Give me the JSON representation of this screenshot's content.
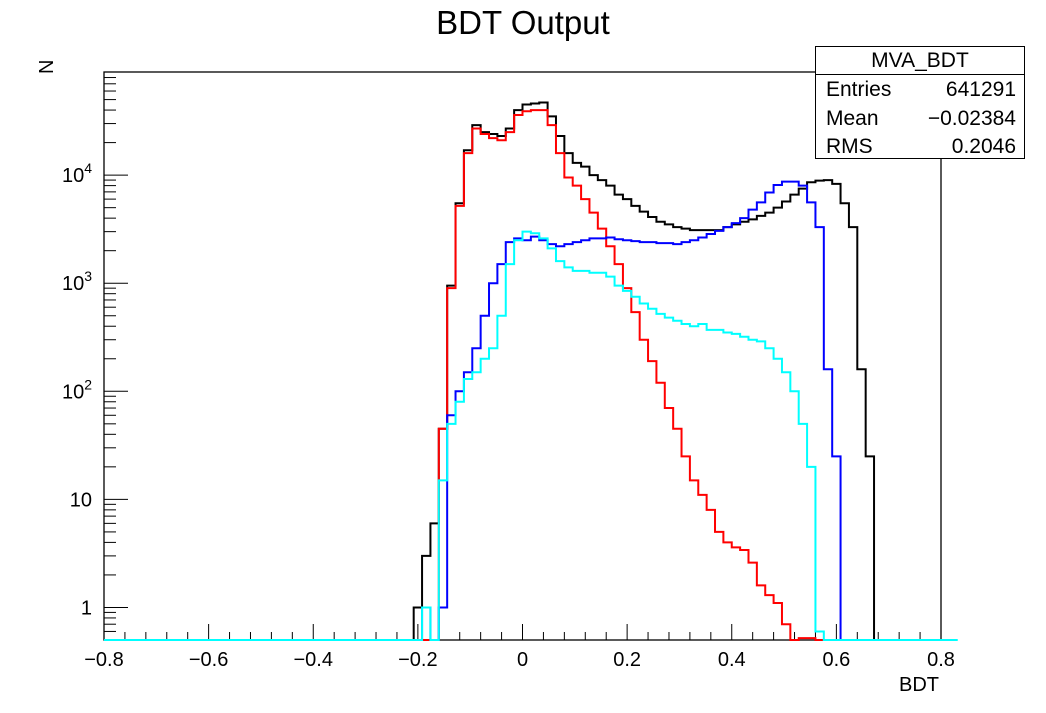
{
  "chart_data": {
    "type": "histogram",
    "title": "BDT Output",
    "xlabel": "BDT",
    "ylabel": "N",
    "xlim": [
      -0.8,
      0.8
    ],
    "ylim": [
      0.5,
      90000
    ],
    "yscale": "log",
    "bins": 100,
    "bin_width": 0.016,
    "x_ticks": [
      "−0.8",
      "−0.6",
      "−0.4",
      "−0.2",
      "0",
      "0.2",
      "0.4",
      "0.6",
      "0.8"
    ],
    "y_ticks": [
      "1",
      "10",
      "10^2",
      "10^3",
      "10^4"
    ],
    "stats": {
      "name": "MVA_BDT",
      "entries_label": "Entries",
      "entries": "641291",
      "mean_label": "Mean",
      "mean": "−0.02384",
      "rms_label": "RMS",
      "rms": "0.2046"
    },
    "series": [
      {
        "color": "#000000",
        "values": [
          0,
          0,
          0,
          0,
          0,
          0,
          0,
          0,
          0,
          0,
          0,
          0,
          0,
          0,
          0,
          0,
          0,
          0,
          0,
          0,
          0,
          0,
          0,
          0,
          0,
          0,
          0,
          0,
          0,
          0,
          0,
          0,
          0,
          0,
          0,
          0,
          0,
          1,
          3,
          6,
          45,
          950,
          5500,
          17000,
          29000,
          25000,
          24000,
          23000,
          27000,
          40000,
          45000,
          46000,
          47000,
          35000,
          23000,
          16000,
          13000,
          12000,
          10000,
          9000,
          8000,
          6600,
          6000,
          5200,
          4600,
          4100,
          3700,
          3500,
          3300,
          3200,
          3100,
          3100,
          3100,
          3100,
          3300,
          3500,
          3700,
          3900,
          4200,
          4500,
          5000,
          5700,
          6600,
          7500,
          8600,
          8900,
          9000,
          8300,
          5500,
          3300,
          160,
          25,
          0,
          0,
          0,
          0,
          0,
          0,
          0,
          0
        ]
      },
      {
        "color": "#ff0000",
        "values": [
          0,
          0,
          0,
          0,
          0,
          0,
          0,
          0,
          0,
          0,
          0,
          0,
          0,
          0,
          0,
          0,
          0,
          0,
          0,
          0,
          0,
          0,
          0,
          0,
          0,
          0,
          0,
          0,
          0,
          0,
          0,
          0,
          0,
          0,
          0,
          0,
          0,
          0,
          0,
          0,
          45,
          900,
          5200,
          16000,
          27000,
          24000,
          22000,
          21000,
          25000,
          36000,
          39000,
          40000,
          40000,
          29000,
          16000,
          9500,
          8000,
          6000,
          4500,
          3200,
          2200,
          1500,
          900,
          540,
          300,
          190,
          120,
          70,
          45,
          25,
          15,
          11,
          8,
          5,
          4,
          3.6,
          3.4,
          2.6,
          1.6,
          1.3,
          1.1,
          0.7,
          0,
          0.52,
          0.52,
          0,
          0,
          0,
          0,
          0,
          0,
          0,
          0,
          0,
          0,
          0,
          0,
          0,
          0,
          0
        ]
      },
      {
        "color": "#0000ff",
        "values": [
          0,
          0,
          0,
          0,
          0,
          0,
          0,
          0,
          0,
          0,
          0,
          0,
          0,
          0,
          0,
          0,
          0,
          0,
          0,
          0,
          0,
          0,
          0,
          0,
          0,
          0,
          0,
          0,
          0,
          0,
          0,
          0,
          0,
          0,
          0,
          0,
          0,
          0,
          1,
          0,
          1,
          60,
          100,
          150,
          250,
          500,
          1000,
          1500,
          2400,
          2600,
          2500,
          2700,
          2500,
          2300,
          2200,
          2300,
          2400,
          2500,
          2600,
          2600,
          2650,
          2550,
          2500,
          2450,
          2400,
          2400,
          2350,
          2350,
          2300,
          2400,
          2500,
          2650,
          2850,
          3050,
          3300,
          3600,
          4000,
          4800,
          5600,
          6900,
          8100,
          8700,
          8700,
          8000,
          5600,
          3300,
          160,
          25,
          0,
          0,
          0,
          0,
          0,
          0,
          0,
          0,
          0,
          0,
          0,
          0
        ]
      },
      {
        "color": "#00ffff",
        "values": [
          0,
          0,
          0,
          0,
          0,
          0,
          0,
          0,
          0,
          0,
          0,
          0,
          0,
          0,
          0,
          0,
          0,
          0,
          0,
          0,
          0,
          0,
          0,
          0,
          0,
          0,
          0,
          0,
          0,
          0,
          0,
          0,
          0,
          0,
          0,
          0,
          0,
          0,
          1,
          0,
          15,
          50,
          80,
          130,
          150,
          200,
          250,
          500,
          1500,
          2500,
          3000,
          2900,
          2600,
          2100,
          1600,
          1400,
          1300,
          1300,
          1250,
          1250,
          1150,
          950,
          850,
          750,
          650,
          580,
          520,
          480,
          450,
          420,
          400,
          420,
          370,
          370,
          350,
          340,
          320,
          300,
          290,
          250,
          200,
          150,
          100,
          50,
          20,
          0.6,
          0,
          0,
          0,
          0,
          0,
          0,
          0,
          0,
          0,
          0,
          0,
          0,
          0,
          0,
          0,
          0
        ]
      }
    ]
  }
}
